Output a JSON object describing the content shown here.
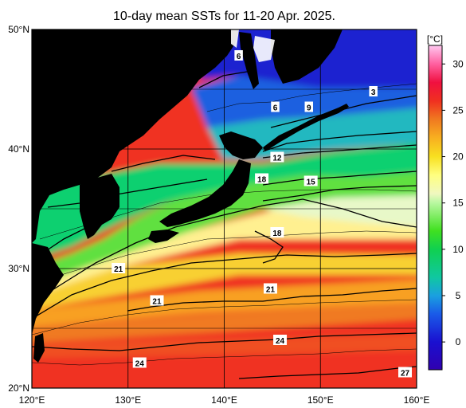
{
  "title": "10-day mean SSTs for 11-20 Apr. 2025.",
  "map": {
    "lon_range": [
      120,
      160
    ],
    "lat_range": [
      20,
      50
    ],
    "lon_ticks": [
      {
        "value": 120,
        "label": "120°E"
      },
      {
        "value": 130,
        "label": "130°E"
      },
      {
        "value": 140,
        "label": "140°E"
      },
      {
        "value": 150,
        "label": "150°E"
      },
      {
        "value": 160,
        "label": "160°E"
      }
    ],
    "lat_ticks": [
      {
        "value": 20,
        "label": "20°N"
      },
      {
        "value": 30,
        "label": "30°N"
      },
      {
        "value": 40,
        "label": "40°N"
      },
      {
        "value": 50,
        "label": "50°N"
      }
    ],
    "land_color": "#555555",
    "contour_labels": [
      {
        "text": "6",
        "lon": 141.5,
        "lat": 47.8
      },
      {
        "text": "3",
        "lon": 155.5,
        "lat": 44.8
      },
      {
        "text": "6",
        "lon": 145.3,
        "lat": 43.5
      },
      {
        "text": "9",
        "lon": 148.8,
        "lat": 43.5
      },
      {
        "text": "12",
        "lon": 145.5,
        "lat": 39.3
      },
      {
        "text": "18",
        "lon": 143.9,
        "lat": 37.5
      },
      {
        "text": "15",
        "lon": 149.0,
        "lat": 37.3
      },
      {
        "text": "18",
        "lon": 145.5,
        "lat": 33.0
      },
      {
        "text": "21",
        "lon": 129.0,
        "lat": 30.0
      },
      {
        "text": "21",
        "lon": 133.0,
        "lat": 27.3
      },
      {
        "text": "21",
        "lon": 144.8,
        "lat": 28.3
      },
      {
        "text": "24",
        "lon": 145.8,
        "lat": 24.0
      },
      {
        "text": "24",
        "lon": 131.2,
        "lat": 22.1
      },
      {
        "text": "27",
        "lon": 158.8,
        "lat": 21.3
      }
    ]
  },
  "colorbar": {
    "unit": "[°C]",
    "min": -3,
    "max": 32,
    "ticks": [
      {
        "value": 0,
        "label": "0"
      },
      {
        "value": 5,
        "label": "5"
      },
      {
        "value": 10,
        "label": "10"
      },
      {
        "value": 15,
        "label": "15"
      },
      {
        "value": 20,
        "label": "20"
      },
      {
        "value": 25,
        "label": "25"
      },
      {
        "value": 30,
        "label": "30"
      }
    ],
    "stops": [
      {
        "value": -3,
        "color": "#3000b0"
      },
      {
        "value": 0,
        "color": "#1a10d0"
      },
      {
        "value": 3,
        "color": "#1a5ae8"
      },
      {
        "value": 5,
        "color": "#1aa0e0"
      },
      {
        "value": 7,
        "color": "#10c8a0"
      },
      {
        "value": 10,
        "color": "#10d050"
      },
      {
        "value": 12,
        "color": "#40e020"
      },
      {
        "value": 15,
        "color": "#b8f8a0"
      },
      {
        "value": 16,
        "color": "#f0f8c0"
      },
      {
        "value": 18,
        "color": "#ffff80"
      },
      {
        "value": 20,
        "color": "#f8e020"
      },
      {
        "value": 22,
        "color": "#f8b020"
      },
      {
        "value": 24,
        "color": "#f07a20"
      },
      {
        "value": 26,
        "color": "#f03020"
      },
      {
        "value": 28,
        "color": "#f01040"
      },
      {
        "value": 30,
        "color": "#ff60a0"
      },
      {
        "value": 32,
        "color": "#ffc8f0"
      }
    ]
  }
}
